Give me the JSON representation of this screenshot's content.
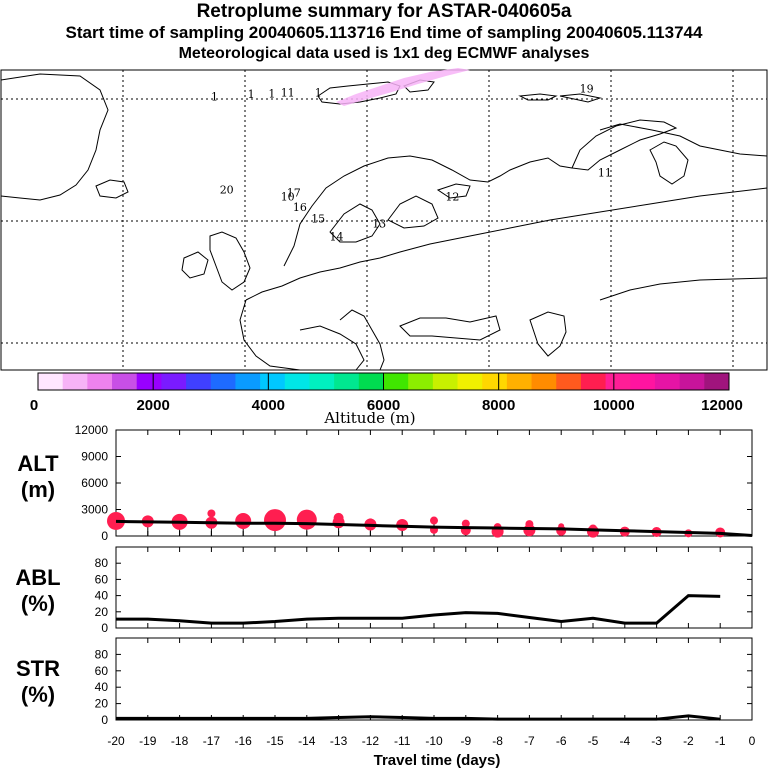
{
  "header": {
    "title": "Retroplume summary for ASTAR-040605a",
    "subtitle": "Start time of sampling 20040605.113716     End time of sampling 20040605.113744",
    "met": "Meteorological data used is 1x1 deg ECMWF analyses"
  },
  "map": {
    "day_labels": [
      {
        "text": "1",
        "lon": -12.5,
        "lat": 79.8
      },
      {
        "text": "1",
        "lon": -9.5,
        "lat": 80.1
      },
      {
        "text": "1",
        "lon": -7.8,
        "lat": 80.2
      },
      {
        "text": "11",
        "lon": -6.5,
        "lat": 80.3
      },
      {
        "text": "1",
        "lon": -4,
        "lat": 80.3
      },
      {
        "text": "20",
        "lon": -11.5,
        "lat": 68.4
      },
      {
        "text": "17",
        "lon": -6,
        "lat": 68.0
      },
      {
        "text": "10",
        "lon": -6.5,
        "lat": 67.5
      },
      {
        "text": "16",
        "lon": -5.5,
        "lat": 66.2
      },
      {
        "text": "15",
        "lon": -4,
        "lat": 64.8
      },
      {
        "text": "13",
        "lon": 1,
        "lat": 64.2
      },
      {
        "text": "14",
        "lon": -2.5,
        "lat": 62.6
      },
      {
        "text": "12",
        "lon": 7,
        "lat": 67.5
      },
      {
        "text": "11",
        "lon": 19.5,
        "lat": 70.5
      },
      {
        "text": "19",
        "lon": 18,
        "lat": 80.8
      }
    ]
  },
  "colorbar": {
    "ticks": [
      "0",
      "2000",
      "4000",
      "6000",
      "8000",
      "10000",
      "12000"
    ],
    "label": "Altitude (m)",
    "colors": [
      "#ffe6ff",
      "#f7b3f7",
      "#ee82ee",
      "#c84fe6",
      "#9900ff",
      "#7a1bff",
      "#4040ff",
      "#1e6bff",
      "#0a9bff",
      "#00c8ff",
      "#00e6e6",
      "#00f0c0",
      "#00e890",
      "#00dc50",
      "#40e600",
      "#8cee00",
      "#c8f000",
      "#f0f000",
      "#ffd700",
      "#ffb000",
      "#ff8c00",
      "#ff5a1e",
      "#ff1e50",
      "#ff1e96",
      "#ff14a0",
      "#e614a5",
      "#c8149b",
      "#a0147d"
    ]
  },
  "chart_data": [
    {
      "type": "line",
      "panel": "ALT",
      "ylabel": [
        "ALT",
        "(m)"
      ],
      "yticks": [
        "12000",
        "9000",
        "6000",
        "3000",
        "0"
      ],
      "ylim": [
        0,
        12000
      ],
      "x": [
        -20,
        -19,
        -18,
        -17,
        -16,
        -15,
        -14,
        -13,
        -12,
        -11,
        -10,
        -9,
        -8,
        -7,
        -6,
        -5,
        -4,
        -3,
        -2,
        -1,
        0
      ],
      "series": [
        {
          "name": "mean altitude",
          "values": [
            1650,
            1600,
            1550,
            1500,
            1450,
            1450,
            1400,
            1300,
            1200,
            1100,
            1000,
            950,
            900,
            850,
            800,
            700,
            600,
            500,
            400,
            300,
            50
          ]
        }
      ],
      "clusters": [
        {
          "day": -20,
          "points": [
            [
              1700,
              9
            ]
          ]
        },
        {
          "day": -19,
          "points": [
            [
              1650,
              6
            ]
          ]
        },
        {
          "day": -18,
          "points": [
            [
              1600,
              8
            ],
            [
              2100,
              3
            ]
          ]
        },
        {
          "day": -17,
          "points": [
            [
              1500,
              6
            ],
            [
              2550,
              4
            ]
          ]
        },
        {
          "day": -16,
          "points": [
            [
              1700,
              8
            ],
            [
              1400,
              4
            ]
          ]
        },
        {
          "day": -15,
          "points": [
            [
              1800,
              11
            ],
            [
              1500,
              5
            ]
          ]
        },
        {
          "day": -14,
          "points": [
            [
              1850,
              10
            ],
            [
              1450,
              5
            ]
          ]
        },
        {
          "day": -13,
          "points": [
            [
              1550,
              6
            ],
            [
              2050,
              5
            ]
          ]
        },
        {
          "day": -12,
          "points": [
            [
              1300,
              6
            ],
            [
              1650,
              3
            ]
          ]
        },
        {
          "day": -11,
          "points": [
            [
              1250,
              6
            ],
            [
              1000,
              3
            ]
          ]
        },
        {
          "day": -10,
          "points": [
            [
              1750,
              4
            ],
            [
              700,
              4
            ]
          ]
        },
        {
          "day": -9,
          "points": [
            [
              650,
              5
            ],
            [
              1400,
              4
            ]
          ]
        },
        {
          "day": -8,
          "points": [
            [
              500,
              6
            ],
            [
              1000,
              4
            ]
          ]
        },
        {
          "day": -7,
          "points": [
            [
              650,
              6
            ],
            [
              1350,
              4
            ]
          ]
        },
        {
          "day": -6,
          "points": [
            [
              600,
              5
            ],
            [
              1100,
              3
            ]
          ]
        },
        {
          "day": -5,
          "points": [
            [
              500,
              6
            ],
            [
              850,
              4
            ]
          ]
        },
        {
          "day": -4,
          "points": [
            [
              500,
              5
            ]
          ]
        },
        {
          "day": -3,
          "points": [
            [
              450,
              5
            ]
          ]
        },
        {
          "day": -2,
          "points": [
            [
              300,
              4
            ]
          ]
        },
        {
          "day": -1,
          "points": [
            [
              400,
              5
            ]
          ]
        }
      ]
    },
    {
      "type": "line",
      "panel": "ABL",
      "ylabel": [
        "ABL",
        "(%)"
      ],
      "yticks": [
        "80",
        "60",
        "40",
        "20",
        "0"
      ],
      "ylim": [
        0,
        100
      ],
      "x": [
        -20,
        -19,
        -18,
        -17,
        -16,
        -15,
        -14,
        -13,
        -12,
        -11,
        -10,
        -9,
        -8,
        -7,
        -6,
        -5,
        -4,
        -3,
        -2,
        -1
      ],
      "series": [
        {
          "name": "fraction in ABL",
          "values": [
            11,
            11,
            9,
            6,
            6,
            8,
            11,
            12,
            12,
            12,
            16,
            19,
            18,
            13,
            8,
            12,
            6,
            6,
            40,
            39
          ]
        }
      ]
    },
    {
      "type": "line",
      "panel": "STR",
      "ylabel": [
        "STR",
        "(%)"
      ],
      "yticks": [
        "80",
        "60",
        "40",
        "20",
        "0"
      ],
      "ylim": [
        0,
        100
      ],
      "x": [
        -20,
        -19,
        -18,
        -17,
        -16,
        -15,
        -14,
        -13,
        -12,
        -11,
        -10,
        -9,
        -8,
        -7,
        -6,
        -5,
        -4,
        -3,
        -2,
        -1
      ],
      "series": [
        {
          "name": "fraction in stratosphere",
          "values": [
            2,
            2,
            2,
            2,
            2,
            2,
            2,
            3,
            4,
            3,
            2,
            2,
            1,
            1,
            1,
            1,
            1,
            1,
            5,
            1
          ]
        }
      ],
      "xlabel": "Travel time (days)",
      "xticks": [
        "-20",
        "-19",
        "-18",
        "-17",
        "-16",
        "-15",
        "-14",
        "-13",
        "-12",
        "-11",
        "-10",
        "-9",
        "-8",
        "-7",
        "-6",
        "-5",
        "-4",
        "-3",
        "-2",
        "-1",
        "0"
      ]
    }
  ]
}
